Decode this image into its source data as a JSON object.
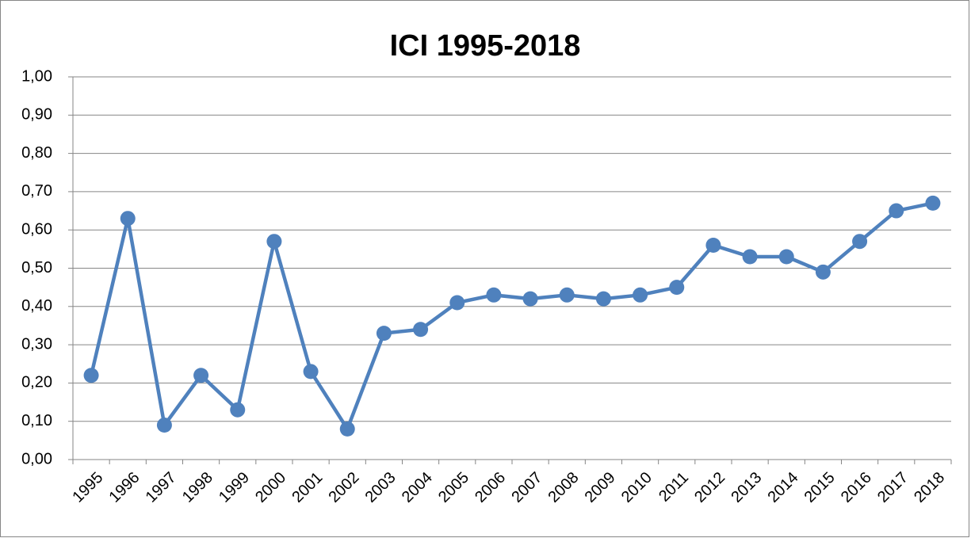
{
  "chart_data": {
    "type": "line",
    "title": "ICI 1995-2018",
    "categories": [
      "1995",
      "1996",
      "1997",
      "1998",
      "1999",
      "2000",
      "2001",
      "2002",
      "2003",
      "2004",
      "2005",
      "2006",
      "2007",
      "2008",
      "2009",
      "2010",
      "2011",
      "2012",
      "2013",
      "2014",
      "2015",
      "2016",
      "2017",
      "2018"
    ],
    "values": [
      0.22,
      0.63,
      0.09,
      0.22,
      0.13,
      0.57,
      0.23,
      0.08,
      0.33,
      0.34,
      0.41,
      0.43,
      0.42,
      0.43,
      0.42,
      0.43,
      0.45,
      0.56,
      0.53,
      0.53,
      0.49,
      0.57,
      0.65,
      0.67
    ],
    "color": "#4f81bd",
    "ylim": [
      0,
      1
    ],
    "yticks": [
      {
        "value": 0,
        "label": "0,00"
      },
      {
        "value": 0.1,
        "label": "0,10"
      },
      {
        "value": 0.2,
        "label": "0,20"
      },
      {
        "value": 0.3,
        "label": "0,30"
      },
      {
        "value": 0.4,
        "label": "0,40"
      },
      {
        "value": 0.5,
        "label": "0,50"
      },
      {
        "value": 0.6,
        "label": "0,60"
      },
      {
        "value": 0.7,
        "label": "0,70"
      },
      {
        "value": 0.8,
        "label": "0,80"
      },
      {
        "value": 0.9,
        "label": "0,90"
      },
      {
        "value": 1,
        "label": "1,00"
      }
    ],
    "grid": true
  }
}
